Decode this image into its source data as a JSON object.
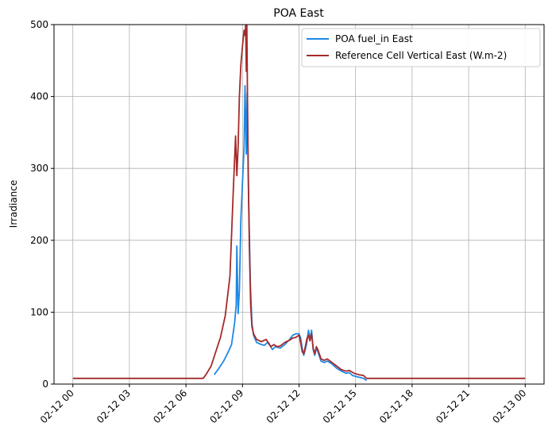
{
  "chart_data": {
    "type": "line",
    "title": "POA East",
    "xlabel": "",
    "ylabel": "Irradiance",
    "ylim": [
      0,
      500
    ],
    "yticks": [
      0,
      100,
      200,
      300,
      400,
      500
    ],
    "xlim": [
      "2023-02-11 23:00",
      "2023-02-13 01:00"
    ],
    "xticks": [
      "2023-02-12 00:00",
      "2023-02-12 03:00",
      "2023-02-12 06:00",
      "2023-02-12 09:00",
      "2023-02-12 12:00",
      "2023-02-12 15:00",
      "2023-02-12 18:00",
      "2023-02-12 21:00",
      "2023-02-13 00:00"
    ],
    "xtick_labels": [
      "02-12 00",
      "02-12 03",
      "02-12 06",
      "02-12 09",
      "02-12 12",
      "02-12 15",
      "02-12 18",
      "02-12 21",
      "02-13 00"
    ],
    "grid": true,
    "legend_position": "top-right",
    "series": [
      {
        "name": "POA fuel_in East",
        "color": "#1e88e5",
        "points": [
          [
            "2023-02-12 07:30",
            13
          ],
          [
            "2023-02-12 07:45",
            22
          ],
          [
            "2023-02-12 08:00",
            32
          ],
          [
            "2023-02-12 08:15",
            45
          ],
          [
            "2023-02-12 08:25",
            55
          ],
          [
            "2023-02-12 08:35",
            85
          ],
          [
            "2023-02-12 08:40",
            110
          ],
          [
            "2023-02-12 08:42",
            192
          ],
          [
            "2023-02-12 08:46",
            98
          ],
          [
            "2023-02-12 08:50",
            130
          ],
          [
            "2023-02-12 08:55",
            230
          ],
          [
            "2023-02-12 09:00",
            280
          ],
          [
            "2023-02-12 09:05",
            330
          ],
          [
            "2023-02-12 09:08",
            415
          ],
          [
            "2023-02-12 09:12",
            320
          ],
          [
            "2023-02-12 09:15",
            405
          ],
          [
            "2023-02-12 09:20",
            250
          ],
          [
            "2023-02-12 09:25",
            140
          ],
          [
            "2023-02-12 09:30",
            85
          ],
          [
            "2023-02-12 09:35",
            68
          ],
          [
            "2023-02-12 09:45",
            58
          ],
          [
            "2023-02-12 10:00",
            55
          ],
          [
            "2023-02-12 10:10",
            54
          ],
          [
            "2023-02-12 10:20",
            58
          ],
          [
            "2023-02-12 10:30",
            52
          ],
          [
            "2023-02-12 10:35",
            48
          ],
          [
            "2023-02-12 10:45",
            52
          ],
          [
            "2023-02-12 11:00",
            50
          ],
          [
            "2023-02-12 11:15",
            55
          ],
          [
            "2023-02-12 11:30",
            62
          ],
          [
            "2023-02-12 11:40",
            68
          ],
          [
            "2023-02-12 11:50",
            70
          ],
          [
            "2023-02-12 12:00",
            70
          ],
          [
            "2023-02-12 12:05",
            64
          ],
          [
            "2023-02-12 12:10",
            50
          ],
          [
            "2023-02-12 12:15",
            40
          ],
          [
            "2023-02-12 12:20",
            48
          ],
          [
            "2023-02-12 12:25",
            58
          ],
          [
            "2023-02-12 12:30",
            75
          ],
          [
            "2023-02-12 12:35",
            62
          ],
          [
            "2023-02-12 12:40",
            75
          ],
          [
            "2023-02-12 12:45",
            48
          ],
          [
            "2023-02-12 12:50",
            40
          ],
          [
            "2023-02-12 12:55",
            50
          ],
          [
            "2023-02-12 13:00",
            45
          ],
          [
            "2023-02-12 13:10",
            32
          ],
          [
            "2023-02-12 13:20",
            30
          ],
          [
            "2023-02-12 13:30",
            32
          ],
          [
            "2023-02-12 13:45",
            28
          ],
          [
            "2023-02-12 14:00",
            22
          ],
          [
            "2023-02-12 14:15",
            18
          ],
          [
            "2023-02-12 14:30",
            15
          ],
          [
            "2023-02-12 14:40",
            16
          ],
          [
            "2023-02-12 14:50",
            12
          ],
          [
            "2023-02-12 15:05",
            10
          ],
          [
            "2023-02-12 15:15",
            9
          ],
          [
            "2023-02-12 15:25",
            8
          ],
          [
            "2023-02-12 15:35",
            5
          ]
        ]
      },
      {
        "name": "Reference Cell Vertical East (W.m-2)",
        "color": "#a52a2a",
        "points": [
          [
            "2023-02-12 00:00",
            8
          ],
          [
            "2023-02-12 01:00",
            8
          ],
          [
            "2023-02-12 02:00",
            8
          ],
          [
            "2023-02-12 03:00",
            8
          ],
          [
            "2023-02-12 04:00",
            8
          ],
          [
            "2023-02-12 05:00",
            8
          ],
          [
            "2023-02-12 06:00",
            8
          ],
          [
            "2023-02-12 06:55",
            8
          ],
          [
            "2023-02-12 07:05",
            14
          ],
          [
            "2023-02-12 07:20",
            25
          ],
          [
            "2023-02-12 07:35",
            45
          ],
          [
            "2023-02-12 07:50",
            65
          ],
          [
            "2023-02-12 08:05",
            95
          ],
          [
            "2023-02-12 08:20",
            150
          ],
          [
            "2023-02-12 08:30",
            260
          ],
          [
            "2023-02-12 08:38",
            345
          ],
          [
            "2023-02-12 08:42",
            290
          ],
          [
            "2023-02-12 08:46",
            330
          ],
          [
            "2023-02-12 08:50",
            400
          ],
          [
            "2023-02-12 08:55",
            445
          ],
          [
            "2023-02-12 09:00",
            470
          ],
          [
            "2023-02-12 09:05",
            492
          ],
          [
            "2023-02-12 09:08",
            485
          ],
          [
            "2023-02-12 09:10",
            500
          ],
          [
            "2023-02-12 09:12",
            435
          ],
          [
            "2023-02-12 09:14",
            500
          ],
          [
            "2023-02-12 09:18",
            300
          ],
          [
            "2023-02-12 09:22",
            190
          ],
          [
            "2023-02-12 09:26",
            110
          ],
          [
            "2023-02-12 09:30",
            80
          ],
          [
            "2023-02-12 09:35",
            70
          ],
          [
            "2023-02-12 09:45",
            62
          ],
          [
            "2023-02-12 10:00",
            59
          ],
          [
            "2023-02-12 10:15",
            62
          ],
          [
            "2023-02-12 10:25",
            56
          ],
          [
            "2023-02-12 10:30",
            52
          ],
          [
            "2023-02-12 10:40",
            55
          ],
          [
            "2023-02-12 10:50",
            52
          ],
          [
            "2023-02-12 11:00",
            53
          ],
          [
            "2023-02-12 11:15",
            58
          ],
          [
            "2023-02-12 11:30",
            61
          ],
          [
            "2023-02-12 11:40",
            64
          ],
          [
            "2023-02-12 11:50",
            65
          ],
          [
            "2023-02-12 12:00",
            68
          ],
          [
            "2023-02-12 12:05",
            58
          ],
          [
            "2023-02-12 12:10",
            45
          ],
          [
            "2023-02-12 12:15",
            42
          ],
          [
            "2023-02-12 12:20",
            52
          ],
          [
            "2023-02-12 12:25",
            63
          ],
          [
            "2023-02-12 12:30",
            68
          ],
          [
            "2023-02-12 12:35",
            60
          ],
          [
            "2023-02-12 12:40",
            70
          ],
          [
            "2023-02-12 12:45",
            50
          ],
          [
            "2023-02-12 12:50",
            42
          ],
          [
            "2023-02-12 12:55",
            52
          ],
          [
            "2023-02-12 13:00",
            48
          ],
          [
            "2023-02-12 13:10",
            35
          ],
          [
            "2023-02-12 13:20",
            33
          ],
          [
            "2023-02-12 13:30",
            35
          ],
          [
            "2023-02-12 13:45",
            30
          ],
          [
            "2023-02-12 14:00",
            25
          ],
          [
            "2023-02-12 14:15",
            20
          ],
          [
            "2023-02-12 14:30",
            18
          ],
          [
            "2023-02-12 14:40",
            19
          ],
          [
            "2023-02-12 14:55",
            15
          ],
          [
            "2023-02-12 15:10",
            13
          ],
          [
            "2023-02-12 15:25",
            12
          ],
          [
            "2023-02-12 15:35",
            8
          ],
          [
            "2023-02-12 16:00",
            8
          ],
          [
            "2023-02-12 17:00",
            8
          ],
          [
            "2023-02-12 18:00",
            8
          ],
          [
            "2023-02-12 19:00",
            8
          ],
          [
            "2023-02-12 20:00",
            8
          ],
          [
            "2023-02-12 21:00",
            8
          ],
          [
            "2023-02-12 22:00",
            8
          ],
          [
            "2023-02-12 23:00",
            8
          ],
          [
            "2023-02-13 00:00",
            8
          ]
        ]
      }
    ]
  }
}
